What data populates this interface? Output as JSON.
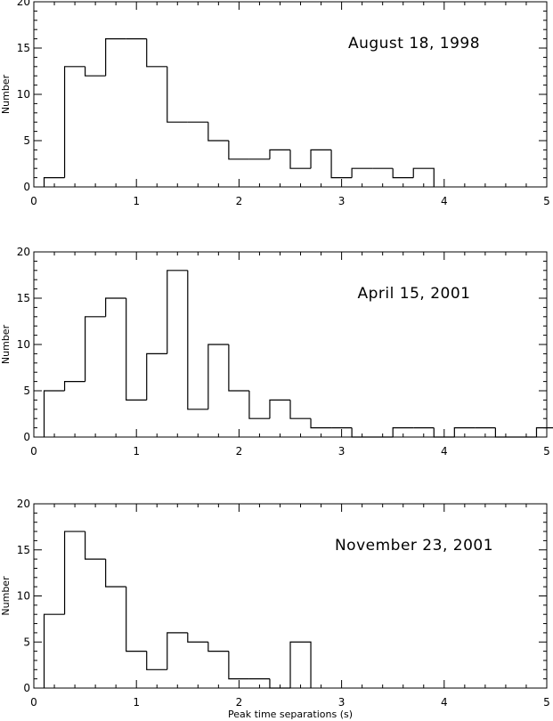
{
  "chart_data": [
    {
      "type": "histogram",
      "title": "August 18, 1998",
      "xlabel": "",
      "ylabel": "Number",
      "xlim": [
        0,
        5
      ],
      "ylim": [
        0,
        20
      ],
      "xticks": [
        "0",
        "1",
        "2",
        "3",
        "4",
        "5"
      ],
      "yticks": [
        "0",
        "5",
        "10",
        "15",
        "20"
      ],
      "bin_width": 0.2,
      "bin_edges_start": [
        0.1,
        0.3,
        0.5,
        0.7,
        0.9,
        1.1,
        1.3,
        1.5,
        1.7,
        1.9,
        2.1,
        2.3,
        2.5,
        2.7,
        2.9,
        3.1,
        3.3,
        3.5,
        3.7
      ],
      "values": [
        1,
        13,
        12,
        16,
        16,
        13,
        7,
        7,
        5,
        3,
        3,
        4,
        2,
        4,
        1,
        2,
        2,
        1,
        2
      ]
    },
    {
      "type": "histogram",
      "title": "April 15, 2001",
      "xlabel": "",
      "ylabel": "Number",
      "xlim": [
        0,
        5
      ],
      "ylim": [
        0,
        20
      ],
      "xticks": [
        "0",
        "1",
        "2",
        "3",
        "4",
        "5"
      ],
      "yticks": [
        "0",
        "5",
        "10",
        "15",
        "20"
      ],
      "bin_width": 0.2,
      "bin_edges_start": [
        0.1,
        0.3,
        0.5,
        0.7,
        0.9,
        1.1,
        1.3,
        1.5,
        1.7,
        1.9,
        2.1,
        2.3,
        2.5,
        2.7,
        2.9,
        3.1,
        3.3,
        3.5,
        3.7,
        3.9,
        4.1,
        4.3,
        4.5,
        4.7,
        4.9
      ],
      "values": [
        5,
        6,
        13,
        15,
        4,
        9,
        18,
        3,
        10,
        5,
        2,
        4,
        2,
        1,
        1,
        0,
        0,
        1,
        1,
        0,
        1,
        1,
        0,
        0,
        1
      ]
    },
    {
      "type": "histogram",
      "title": "November 23, 2001",
      "xlabel": "Peak time separations (s)",
      "ylabel": "Number",
      "xlim": [
        0,
        5
      ],
      "ylim": [
        0,
        20
      ],
      "xticks": [
        "0",
        "1",
        "2",
        "3",
        "4",
        "5"
      ],
      "yticks": [
        "0",
        "5",
        "10",
        "15",
        "20"
      ],
      "bin_width": 0.2,
      "bin_edges_start": [
        0.1,
        0.3,
        0.5,
        0.7,
        0.9,
        1.1,
        1.3,
        1.5,
        1.7,
        1.9,
        2.1,
        2.3,
        2.5
      ],
      "values": [
        8,
        17,
        14,
        11,
        4,
        2,
        6,
        5,
        4,
        1,
        1,
        0,
        5
      ]
    }
  ]
}
